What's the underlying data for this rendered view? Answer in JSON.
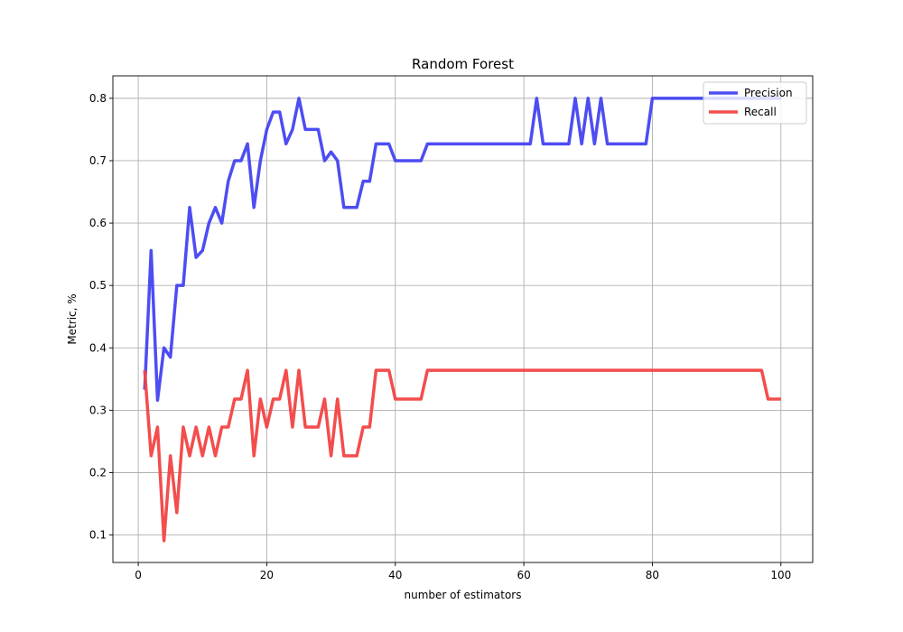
{
  "chart_data": {
    "type": "line",
    "title": "Random Forest",
    "xlabel": "number of estimators",
    "ylabel": "Metric, %",
    "xlim": [
      -3.95,
      104.95
    ],
    "ylim": [
      0.056,
      0.836
    ],
    "xticks": [
      0,
      20,
      40,
      60,
      80,
      100
    ],
    "yticks": [
      0.1,
      0.2,
      0.3,
      0.4,
      0.5,
      0.6,
      0.7,
      0.8
    ],
    "xtick_labels": [
      "0",
      "20",
      "40",
      "60",
      "80",
      "100"
    ],
    "ytick_labels": [
      "0.1",
      "0.2",
      "0.3",
      "0.4",
      "0.5",
      "0.6",
      "0.7",
      "0.8"
    ],
    "grid": true,
    "legend_position": "top-right",
    "series": [
      {
        "name": "Precision",
        "color": "#4343f2",
        "x": [
          1,
          2,
          3,
          4,
          5,
          6,
          7,
          8,
          9,
          10,
          11,
          12,
          13,
          14,
          15,
          16,
          17,
          18,
          19,
          20,
          21,
          22,
          23,
          24,
          25,
          26,
          27,
          28,
          29,
          30,
          31,
          32,
          33,
          34,
          35,
          36,
          37,
          38,
          39,
          40,
          41,
          42,
          43,
          44,
          45,
          46,
          47,
          48,
          49,
          50,
          51,
          52,
          53,
          54,
          55,
          56,
          57,
          58,
          59,
          60,
          61,
          62,
          63,
          64,
          65,
          66,
          67,
          68,
          69,
          70,
          71,
          72,
          73,
          74,
          75,
          76,
          77,
          78,
          79,
          80,
          81,
          82,
          83,
          84,
          85,
          86,
          87,
          88,
          89,
          90,
          91,
          92,
          93,
          94,
          95,
          96,
          97,
          98,
          99,
          100
        ],
        "values": [
          0.333,
          0.556,
          0.316,
          0.4,
          0.385,
          0.5,
          0.5,
          0.625,
          0.545,
          0.556,
          0.6,
          0.625,
          0.6,
          0.667,
          0.7,
          0.7,
          0.727,
          0.625,
          0.7,
          0.75,
          0.778,
          0.778,
          0.727,
          0.75,
          0.8,
          0.75,
          0.75,
          0.75,
          0.7,
          0.714,
          0.7,
          0.625,
          0.625,
          0.625,
          0.667,
          0.667,
          0.727,
          0.727,
          0.727,
          0.7,
          0.7,
          0.7,
          0.7,
          0.7,
          0.727,
          0.727,
          0.727,
          0.727,
          0.727,
          0.727,
          0.727,
          0.727,
          0.727,
          0.727,
          0.727,
          0.727,
          0.727,
          0.727,
          0.727,
          0.727,
          0.727,
          0.8,
          0.727,
          0.727,
          0.727,
          0.727,
          0.727,
          0.8,
          0.727,
          0.8,
          0.727,
          0.8,
          0.727,
          0.727,
          0.727,
          0.727,
          0.727,
          0.727,
          0.727,
          0.8,
          0.8,
          0.8,
          0.8,
          0.8,
          0.8,
          0.8,
          0.8,
          0.8,
          0.8,
          0.8,
          0.8,
          0.8,
          0.8,
          0.8,
          0.8,
          0.8,
          0.8,
          0.8,
          0.8,
          0.8
        ]
      },
      {
        "name": "Recall",
        "color": "#f24343",
        "x": [
          1,
          2,
          3,
          4,
          5,
          6,
          7,
          8,
          9,
          10,
          11,
          12,
          13,
          14,
          15,
          16,
          17,
          18,
          19,
          20,
          21,
          22,
          23,
          24,
          25,
          26,
          27,
          28,
          29,
          30,
          31,
          32,
          33,
          34,
          35,
          36,
          37,
          38,
          39,
          40,
          41,
          42,
          43,
          44,
          45,
          46,
          47,
          48,
          49,
          50,
          51,
          52,
          53,
          54,
          55,
          56,
          57,
          58,
          59,
          60,
          61,
          62,
          63,
          64,
          65,
          66,
          67,
          68,
          69,
          70,
          71,
          72,
          73,
          74,
          75,
          76,
          77,
          78,
          79,
          80,
          81,
          82,
          83,
          84,
          85,
          86,
          87,
          88,
          89,
          90,
          91,
          92,
          93,
          94,
          95,
          96,
          97,
          98,
          99,
          100
        ],
        "values": [
          0.364,
          0.227,
          0.273,
          0.091,
          0.227,
          0.136,
          0.273,
          0.227,
          0.273,
          0.227,
          0.273,
          0.227,
          0.273,
          0.273,
          0.318,
          0.318,
          0.364,
          0.227,
          0.318,
          0.273,
          0.318,
          0.318,
          0.364,
          0.273,
          0.364,
          0.273,
          0.273,
          0.273,
          0.318,
          0.227,
          0.318,
          0.227,
          0.227,
          0.227,
          0.273,
          0.273,
          0.364,
          0.364,
          0.364,
          0.318,
          0.318,
          0.318,
          0.318,
          0.318,
          0.364,
          0.364,
          0.364,
          0.364,
          0.364,
          0.364,
          0.364,
          0.364,
          0.364,
          0.364,
          0.364,
          0.364,
          0.364,
          0.364,
          0.364,
          0.364,
          0.364,
          0.364,
          0.364,
          0.364,
          0.364,
          0.364,
          0.364,
          0.364,
          0.364,
          0.364,
          0.364,
          0.364,
          0.364,
          0.364,
          0.364,
          0.364,
          0.364,
          0.364,
          0.364,
          0.364,
          0.364,
          0.364,
          0.364,
          0.364,
          0.364,
          0.364,
          0.364,
          0.364,
          0.364,
          0.364,
          0.364,
          0.364,
          0.364,
          0.364,
          0.364,
          0.364,
          0.364,
          0.318,
          0.318,
          0.318
        ]
      }
    ]
  }
}
